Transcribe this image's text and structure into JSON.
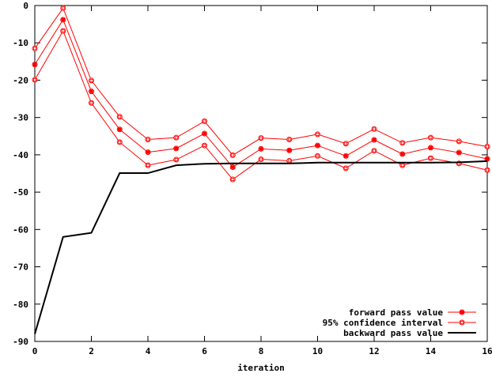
{
  "chart_data": {
    "type": "line",
    "title": "",
    "xlabel": "iteration",
    "ylabel": "",
    "xlim": [
      0,
      16
    ],
    "ylim": [
      -90,
      0
    ],
    "xticks": [
      0,
      2,
      4,
      6,
      8,
      10,
      12,
      14,
      16
    ],
    "yticks": [
      0,
      -10,
      -20,
      -30,
      -40,
      -50,
      -60,
      -70,
      -80,
      -90
    ],
    "xtick_labels": [
      "0",
      "2",
      "4",
      "6",
      "8",
      "10",
      "12",
      "14",
      "16"
    ],
    "ytick_labels": [
      "0",
      "-10",
      "-20",
      "-30",
      "-40",
      "-50",
      "-60",
      "-70",
      "-80",
      "-90"
    ],
    "grid": false,
    "legend_position": "bottom-right",
    "x": [
      0,
      1,
      2,
      3,
      4,
      5,
      6,
      7,
      8,
      9,
      10,
      11,
      12,
      13,
      14,
      15,
      16
    ],
    "series": [
      {
        "name": "forward pass value",
        "role": "forward",
        "color": "#ff0000",
        "marker": "filled-square",
        "values": [
          -15.8,
          -3.8,
          -23.0,
          -33.2,
          -39.3,
          -38.3,
          -34.3,
          -43.3,
          -38.4,
          -38.8,
          -37.5,
          -40.3,
          -36.0,
          -39.8,
          -38.1,
          -39.4,
          -41.1
        ]
      },
      {
        "name": "95% confidence interval",
        "role": "ci-upper",
        "color": "#ff0000",
        "marker": "open-circle",
        "values": [
          -11.5,
          -0.7,
          -20.1,
          -29.8,
          -35.9,
          -35.4,
          -31.0,
          -40.1,
          -35.5,
          -35.9,
          -34.5,
          -37.0,
          -33.1,
          -36.8,
          -35.4,
          -36.4,
          -37.8
        ]
      },
      {
        "name": "",
        "role": "ci-lower",
        "color": "#ff0000",
        "marker": "open-circle",
        "values": [
          -19.9,
          -6.8,
          -26.1,
          -36.6,
          -42.8,
          -41.3,
          -37.5,
          -46.6,
          -41.2,
          -41.6,
          -40.3,
          -43.6,
          -38.9,
          -42.8,
          -40.9,
          -42.3,
          -44.1
        ]
      },
      {
        "name": "backward pass value",
        "role": "backward",
        "color": "#000000",
        "marker": "none",
        "values": [
          -88.0,
          -62.0,
          -60.9,
          -44.9,
          -44.9,
          -42.8,
          -42.4,
          -42.3,
          -42.3,
          -42.3,
          -42.1,
          -42.1,
          -42.1,
          -42.1,
          -42.1,
          -42.0,
          -41.7
        ]
      }
    ]
  }
}
